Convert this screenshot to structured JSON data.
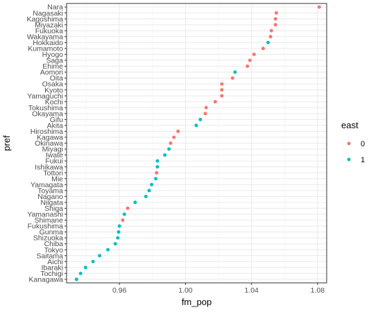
{
  "chart_data": {
    "type": "scatter",
    "title": "",
    "xlabel": "fm_pop",
    "ylabel": "pref",
    "xlim": [
      0.928,
      1.0855
    ],
    "x_ticks": [
      "0.96",
      "1.00",
      "1.04",
      "1.08"
    ],
    "x_tick_values": [
      0.96,
      1.0,
      1.04,
      1.08
    ],
    "grid": true,
    "legend": {
      "title": "east",
      "placement": "right",
      "entries": [
        {
          "label": "0",
          "color": "#F8766D"
        },
        {
          "label": "1",
          "color": "#00BFC4"
        }
      ]
    },
    "series_colors": {
      "0": "#F8766D",
      "1": "#00BFC4"
    },
    "points": [
      {
        "pref": "Nara",
        "fm_pop": 1.081,
        "east": "0"
      },
      {
        "pref": "Nagasaki",
        "fm_pop": 1.055,
        "east": "0"
      },
      {
        "pref": "Kagoshima",
        "fm_pop": 1.0545,
        "east": "0"
      },
      {
        "pref": "Miyazaki",
        "fm_pop": 1.0545,
        "east": "0"
      },
      {
        "pref": "Fukuoka",
        "fm_pop": 1.052,
        "east": "0"
      },
      {
        "pref": "Wakayama",
        "fm_pop": 1.0515,
        "east": "0"
      },
      {
        "pref": "Hokkaido",
        "fm_pop": 1.05,
        "east": "1"
      },
      {
        "pref": "Kumamoto",
        "fm_pop": 1.047,
        "east": "0"
      },
      {
        "pref": "Hyogo",
        "fm_pop": 1.0415,
        "east": "0"
      },
      {
        "pref": "Saga",
        "fm_pop": 1.039,
        "east": "0"
      },
      {
        "pref": "Ehime",
        "fm_pop": 1.0375,
        "east": "0"
      },
      {
        "pref": "Aomori",
        "fm_pop": 1.03,
        "east": "1"
      },
      {
        "pref": "Oita",
        "fm_pop": 1.0285,
        "east": "0"
      },
      {
        "pref": "Osaka",
        "fm_pop": 1.022,
        "east": "0"
      },
      {
        "pref": "Kyoto",
        "fm_pop": 1.022,
        "east": "0"
      },
      {
        "pref": "Yamaguchi",
        "fm_pop": 1.022,
        "east": "0"
      },
      {
        "pref": "Kochi",
        "fm_pop": 1.018,
        "east": "0"
      },
      {
        "pref": "Tokushima",
        "fm_pop": 1.0125,
        "east": "0"
      },
      {
        "pref": "Okayama",
        "fm_pop": 1.012,
        "east": "0"
      },
      {
        "pref": "Gifu",
        "fm_pop": 1.009,
        "east": "1"
      },
      {
        "pref": "Akita",
        "fm_pop": 1.0065,
        "east": "1"
      },
      {
        "pref": "Hiroshima",
        "fm_pop": 0.9955,
        "east": "0"
      },
      {
        "pref": "Kagawa",
        "fm_pop": 0.993,
        "east": "0"
      },
      {
        "pref": "Okinawa",
        "fm_pop": 0.991,
        "east": "0"
      },
      {
        "pref": "Miyagi",
        "fm_pop": 0.99,
        "east": "1"
      },
      {
        "pref": "Iwate",
        "fm_pop": 0.9875,
        "east": "1"
      },
      {
        "pref": "Fukui",
        "fm_pop": 0.983,
        "east": "1"
      },
      {
        "pref": "Ishikawa",
        "fm_pop": 0.983,
        "east": "1"
      },
      {
        "pref": "Tottori",
        "fm_pop": 0.9825,
        "east": "0"
      },
      {
        "pref": "Mie",
        "fm_pop": 0.982,
        "east": "1"
      },
      {
        "pref": "Yamagata",
        "fm_pop": 0.9795,
        "east": "1"
      },
      {
        "pref": "Toyama",
        "fm_pop": 0.978,
        "east": "1"
      },
      {
        "pref": "Nagano",
        "fm_pop": 0.976,
        "east": "1"
      },
      {
        "pref": "Niigata",
        "fm_pop": 0.9695,
        "east": "1"
      },
      {
        "pref": "Shiga",
        "fm_pop": 0.965,
        "east": "0"
      },
      {
        "pref": "Yamanashi",
        "fm_pop": 0.963,
        "east": "1"
      },
      {
        "pref": "Shimane",
        "fm_pop": 0.962,
        "east": "0"
      },
      {
        "pref": "Fukushima",
        "fm_pop": 0.96,
        "east": "1"
      },
      {
        "pref": "Gunma",
        "fm_pop": 0.9595,
        "east": "1"
      },
      {
        "pref": "Shizuoka",
        "fm_pop": 0.959,
        "east": "1"
      },
      {
        "pref": "Chiba",
        "fm_pop": 0.9575,
        "east": "1"
      },
      {
        "pref": "Tokyo",
        "fm_pop": 0.953,
        "east": "1"
      },
      {
        "pref": "Saitama",
        "fm_pop": 0.948,
        "east": "1"
      },
      {
        "pref": "Aichi",
        "fm_pop": 0.944,
        "east": "1"
      },
      {
        "pref": "Ibaraki",
        "fm_pop": 0.9395,
        "east": "1"
      },
      {
        "pref": "Tochigi",
        "fm_pop": 0.9365,
        "east": "1"
      },
      {
        "pref": "Kanagawa",
        "fm_pop": 0.934,
        "east": "1"
      }
    ]
  }
}
